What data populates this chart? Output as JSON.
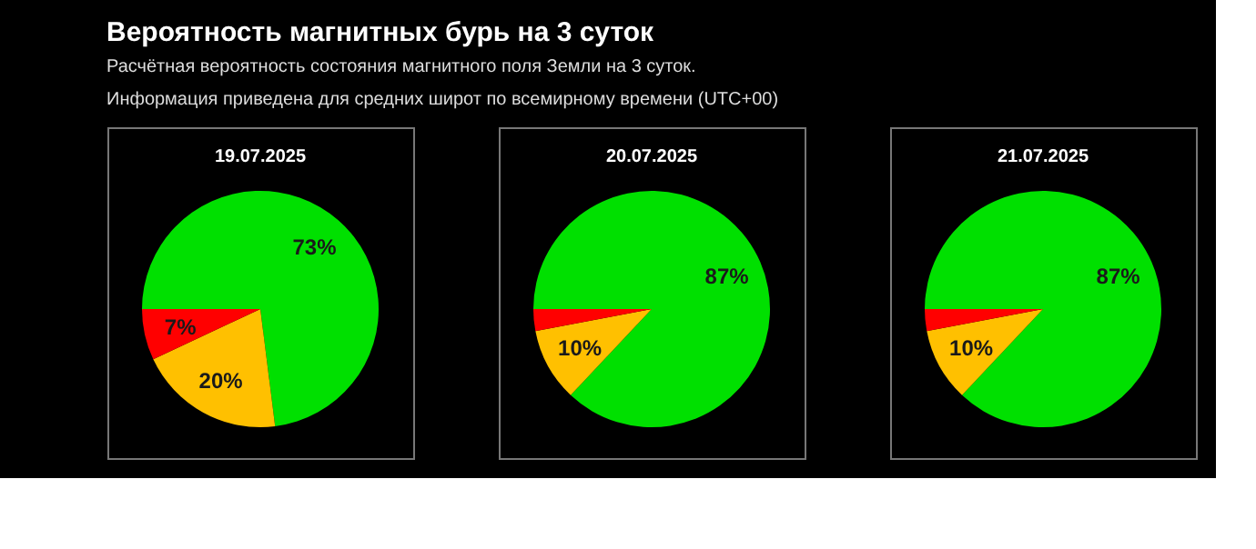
{
  "chart_data": [
    {
      "type": "pie",
      "title": "Вероятность магнитных бурь на 3 суток",
      "subtitle": "Расчётная вероятность состояния магнитного поля Земли на 3 суток.\nИнформация приведена для средних широт по всемирному времени (UTC+00)",
      "annotations": [
        "19.07.2025"
      ],
      "categories": [
        null,
        null,
        null
      ],
      "values": [
        73,
        20,
        7
      ],
      "colors": [
        "#00e000",
        "#ffc000",
        "#ff0000"
      ],
      "value_labels": [
        "73%",
        "20%",
        "7%"
      ]
    },
    {
      "type": "pie",
      "annotations": [
        "20.07.2025"
      ],
      "categories": [
        null,
        null,
        null
      ],
      "values": [
        87,
        10,
        3
      ],
      "colors": [
        "#00e000",
        "#ffc000",
        "#ff0000"
      ],
      "value_labels": [
        "87%",
        "10%",
        null
      ]
    },
    {
      "type": "pie",
      "annotations": [
        "21.07.2025"
      ],
      "categories": [
        null,
        null,
        null
      ],
      "values": [
        87,
        10,
        3
      ],
      "colors": [
        "#00e000",
        "#ffc000",
        "#ff0000"
      ],
      "value_labels": [
        "87%",
        "10%",
        null
      ]
    }
  ]
}
